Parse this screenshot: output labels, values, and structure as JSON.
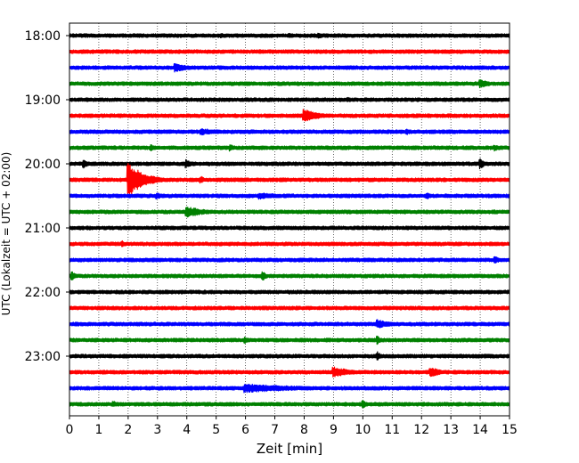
{
  "chart_data": {
    "type": "line",
    "chart_kind": "helicorder",
    "xlabel": "Zeit  [min]",
    "ylabel": "UTC (Lokalzeit = UTC + 02:00)",
    "xlim": [
      0,
      15
    ],
    "x_ticks": [
      0,
      1,
      2,
      3,
      4,
      5,
      6,
      7,
      8,
      9,
      10,
      11,
      12,
      13,
      14,
      15
    ],
    "x_tick_labels": [
      "0",
      "1",
      "2",
      "3",
      "4",
      "5",
      "6",
      "7",
      "8",
      "9",
      "10",
      "11",
      "12",
      "13",
      "14",
      "15"
    ],
    "y_tick_labels": [
      "18:00",
      "19:00",
      "20:00",
      "21:00",
      "22:00",
      "23:00"
    ],
    "grid": "vertical dotted lines at each minute",
    "trace_minutes_per_line": 15,
    "trace_colors": [
      "#000000",
      "#ff0000",
      "#0000ff",
      "#008000"
    ],
    "traces": [
      {
        "start": "18:00",
        "color": "#000000",
        "events": [
          {
            "x": 5.2,
            "amp": 2
          },
          {
            "x": 7.5,
            "amp": 2
          },
          {
            "x": 8.5,
            "amp": 3
          }
        ]
      },
      {
        "start": "18:15",
        "color": "#ff0000",
        "events": [
          {
            "x": 6.5,
            "amp": 2
          },
          {
            "x": 9.0,
            "amp": 2
          }
        ]
      },
      {
        "start": "18:30",
        "color": "#0000ff",
        "events": [
          {
            "x": 3.6,
            "amp": 4,
            "width": 1.2
          }
        ]
      },
      {
        "start": "18:45",
        "color": "#008000",
        "events": [
          {
            "x": 14.0,
            "amp": 4,
            "width": 0.8
          }
        ]
      },
      {
        "start": "19:00",
        "color": "#000000",
        "events": [
          {
            "x": 9.5,
            "amp": 2
          }
        ]
      },
      {
        "start": "19:15",
        "color": "#ff0000",
        "events": [
          {
            "x": 8.0,
            "amp": 6,
            "width": 1.2
          },
          {
            "x": 13.0,
            "amp": 2
          }
        ]
      },
      {
        "start": "19:30",
        "color": "#0000ff",
        "events": [
          {
            "x": 4.5,
            "amp": 3,
            "width": 2.0
          },
          {
            "x": 11.5,
            "amp": 3
          }
        ]
      },
      {
        "start": "19:45",
        "color": "#008000",
        "events": [
          {
            "x": 2.8,
            "amp": 3
          },
          {
            "x": 5.5,
            "amp": 3
          },
          {
            "x": 14.5,
            "amp": 3
          }
        ]
      },
      {
        "start": "20:00",
        "color": "#000000",
        "events": [
          {
            "x": 0.5,
            "amp": 4
          },
          {
            "x": 4.0,
            "amp": 4
          },
          {
            "x": 14.0,
            "amp": 5
          }
        ]
      },
      {
        "start": "20:15",
        "color": "#ff0000",
        "events": [
          {
            "x": 2.0,
            "amp": 16,
            "width": 1.2
          },
          {
            "x": 4.5,
            "amp": 3
          }
        ]
      },
      {
        "start": "20:30",
        "color": "#0000ff",
        "events": [
          {
            "x": 3.0,
            "amp": 3
          },
          {
            "x": 6.5,
            "amp": 3,
            "width": 2.0
          },
          {
            "x": 12.2,
            "amp": 3
          }
        ]
      },
      {
        "start": "20:45",
        "color": "#008000",
        "events": [
          {
            "x": 4.0,
            "amp": 5,
            "width": 1.5
          },
          {
            "x": 14.5,
            "amp": 2
          }
        ]
      },
      {
        "start": "21:00",
        "color": "#000000",
        "events": []
      },
      {
        "start": "21:15",
        "color": "#ff0000",
        "events": [
          {
            "x": 1.8,
            "amp": 3
          }
        ]
      },
      {
        "start": "21:30",
        "color": "#0000ff",
        "events": [
          {
            "x": 7.0,
            "amp": 2
          },
          {
            "x": 14.5,
            "amp": 4
          }
        ]
      },
      {
        "start": "21:45",
        "color": "#008000",
        "events": [
          {
            "x": 0.1,
            "amp": 4
          },
          {
            "x": 6.6,
            "amp": 4
          }
        ]
      },
      {
        "start": "22:00",
        "color": "#000000",
        "events": []
      },
      {
        "start": "22:15",
        "color": "#ff0000",
        "events": []
      },
      {
        "start": "22:30",
        "color": "#0000ff",
        "events": [
          {
            "x": 10.5,
            "amp": 4,
            "width": 1.2
          }
        ]
      },
      {
        "start": "22:45",
        "color": "#008000",
        "events": [
          {
            "x": 6.0,
            "amp": 3
          },
          {
            "x": 10.5,
            "amp": 4
          }
        ]
      },
      {
        "start": "23:00",
        "color": "#000000",
        "events": [
          {
            "x": 10.5,
            "amp": 4
          }
        ]
      },
      {
        "start": "23:15",
        "color": "#ff0000",
        "events": [
          {
            "x": 9.0,
            "amp": 5,
            "width": 1.5
          },
          {
            "x": 12.3,
            "amp": 5,
            "width": 0.8
          }
        ]
      },
      {
        "start": "23:30",
        "color": "#0000ff",
        "events": [
          {
            "x": 6.0,
            "amp": 4,
            "width": 5.0
          }
        ]
      },
      {
        "start": "23:45",
        "color": "#008000",
        "events": [
          {
            "x": 1.5,
            "amp": 3
          },
          {
            "x": 10.0,
            "amp": 4
          }
        ]
      }
    ]
  }
}
